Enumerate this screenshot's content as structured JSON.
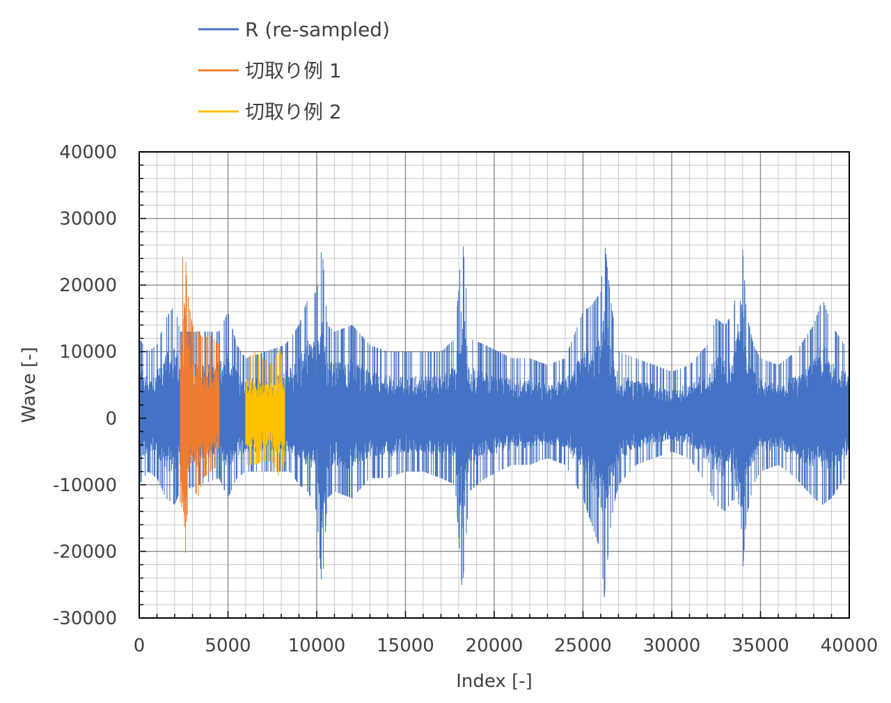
{
  "chart_data": {
    "type": "line",
    "title": "",
    "xlabel": "Index [-]",
    "ylabel": "Wave [-]",
    "xlim": [
      0,
      40000
    ],
    "ylim": [
      -30000,
      40000
    ],
    "xticks": [
      0,
      5000,
      10000,
      15000,
      20000,
      25000,
      30000,
      35000,
      40000
    ],
    "yticks": [
      -30000,
      -20000,
      -10000,
      0,
      10000,
      20000,
      30000,
      40000
    ],
    "xtick_labels": [
      "0",
      "5000",
      "10000",
      "15000",
      "20000",
      "25000",
      "30000",
      "35000",
      "40000"
    ],
    "ytick_labels": [
      "-30000",
      "-20000",
      "-10000",
      "0",
      "10000",
      "20000",
      "30000",
      "40000"
    ],
    "x_minor_step": 1000,
    "y_minor_step": 2000,
    "grid": true,
    "legend_position": "top-left",
    "series": [
      {
        "name": "R  (re-sampled)",
        "color": "#4472C4",
        "x_range": [
          0,
          40000
        ],
        "envelope": [
          [
            0,
            12000,
            -10000
          ],
          [
            500,
            10000,
            -8000
          ],
          [
            1000,
            11000,
            -9000
          ],
          [
            1500,
            15000,
            -12000
          ],
          [
            2000,
            17000,
            -13000
          ],
          [
            2300,
            13000,
            -11000
          ],
          [
            4500,
            13000,
            -9000
          ],
          [
            5000,
            16000,
            -12000
          ],
          [
            5500,
            11000,
            -9000
          ],
          [
            6000,
            9000,
            -8000
          ],
          [
            8200,
            11000,
            -8000
          ],
          [
            8500,
            12000,
            -8000
          ],
          [
            9000,
            14000,
            -10000
          ],
          [
            9500,
            18000,
            -11000
          ],
          [
            10000,
            19000,
            -14000
          ],
          [
            10300,
            26000,
            -26000
          ],
          [
            10600,
            14000,
            -12000
          ],
          [
            11000,
            13000,
            -11000
          ],
          [
            12000,
            14000,
            -12000
          ],
          [
            13000,
            11000,
            -9000
          ],
          [
            14000,
            10000,
            -9000
          ],
          [
            15000,
            10000,
            -8000
          ],
          [
            16000,
            10000,
            -8000
          ],
          [
            17000,
            10000,
            -9000
          ],
          [
            17800,
            12000,
            -10000
          ],
          [
            18200,
            28000,
            -26000
          ],
          [
            18600,
            12000,
            -11000
          ],
          [
            19500,
            11000,
            -9000
          ],
          [
            21000,
            9000,
            -7000
          ],
          [
            22000,
            9000,
            -7000
          ],
          [
            23000,
            8000,
            -6000
          ],
          [
            24000,
            9000,
            -7000
          ],
          [
            25000,
            16000,
            -12000
          ],
          [
            25500,
            17000,
            -16000
          ],
          [
            26000,
            19000,
            -20000
          ],
          [
            26200,
            27000,
            -27000
          ],
          [
            26600,
            17000,
            -15000
          ],
          [
            27000,
            10000,
            -10000
          ],
          [
            28000,
            9000,
            -7000
          ],
          [
            29000,
            8000,
            -6000
          ],
          [
            30000,
            7000,
            -5000
          ],
          [
            31000,
            8000,
            -6000
          ],
          [
            32000,
            11000,
            -10000
          ],
          [
            32500,
            15000,
            -13000
          ],
          [
            33000,
            14000,
            -14000
          ],
          [
            33500,
            16000,
            -12000
          ],
          [
            33900,
            30000,
            -27000
          ],
          [
            34200,
            16000,
            -15000
          ],
          [
            34600,
            11000,
            -10000
          ],
          [
            35000,
            9000,
            -8000
          ],
          [
            36000,
            8000,
            -7000
          ],
          [
            37000,
            10000,
            -9000
          ],
          [
            38000,
            14000,
            -12000
          ],
          [
            38500,
            18000,
            -13000
          ],
          [
            39000,
            14000,
            -12000
          ],
          [
            39500,
            12000,
            -10000
          ],
          [
            40000,
            10000,
            -8000
          ]
        ]
      },
      {
        "name": "切取り例 1",
        "color": "#ED7D31",
        "x_range": [
          2300,
          4500
        ],
        "envelope": [
          [
            2300,
            13000,
            -11000
          ],
          [
            2400,
            22000,
            -23000
          ],
          [
            2550,
            28500,
            -26000
          ],
          [
            2650,
            22000,
            -16000
          ],
          [
            2800,
            17000,
            -12000
          ],
          [
            3000,
            14000,
            -10000
          ],
          [
            3300,
            13000,
            -12000
          ],
          [
            3600,
            12000,
            -9000
          ],
          [
            4000,
            12500,
            -8000
          ],
          [
            4500,
            11000,
            -7000
          ]
        ]
      },
      {
        "name": "切取り例 2",
        "color": "#FFC000",
        "x_range": [
          6000,
          8200
        ],
        "envelope": [
          [
            6000,
            9000,
            -7000
          ],
          [
            6500,
            10000,
            -7000
          ],
          [
            7000,
            9000,
            -6500
          ],
          [
            7500,
            8000,
            -6500
          ],
          [
            7900,
            10500,
            -9000
          ],
          [
            8200,
            8000,
            -6500
          ]
        ]
      }
    ]
  }
}
